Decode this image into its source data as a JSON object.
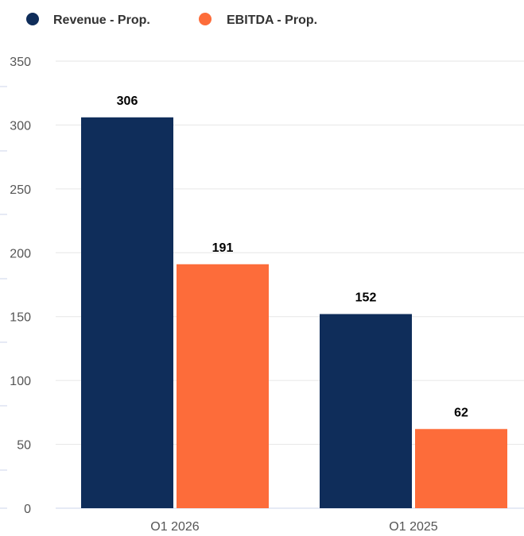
{
  "chart_data": {
    "type": "bar",
    "categories": [
      "O1 2026",
      "O1 2025"
    ],
    "series": [
      {
        "name": "Revenue - Prop.",
        "values": [
          306,
          152
        ],
        "color": "#0f2d5a"
      },
      {
        "name": "EBITDA - Prop.",
        "values": [
          191,
          62
        ],
        "color": "#fd6c3a"
      }
    ],
    "yticks": [
      "0",
      "50",
      "100",
      "150",
      "200",
      "250",
      "300",
      "350"
    ],
    "ylim": [
      0,
      350
    ],
    "grid": true,
    "legend_position": "top-left",
    "data_labels": true
  }
}
